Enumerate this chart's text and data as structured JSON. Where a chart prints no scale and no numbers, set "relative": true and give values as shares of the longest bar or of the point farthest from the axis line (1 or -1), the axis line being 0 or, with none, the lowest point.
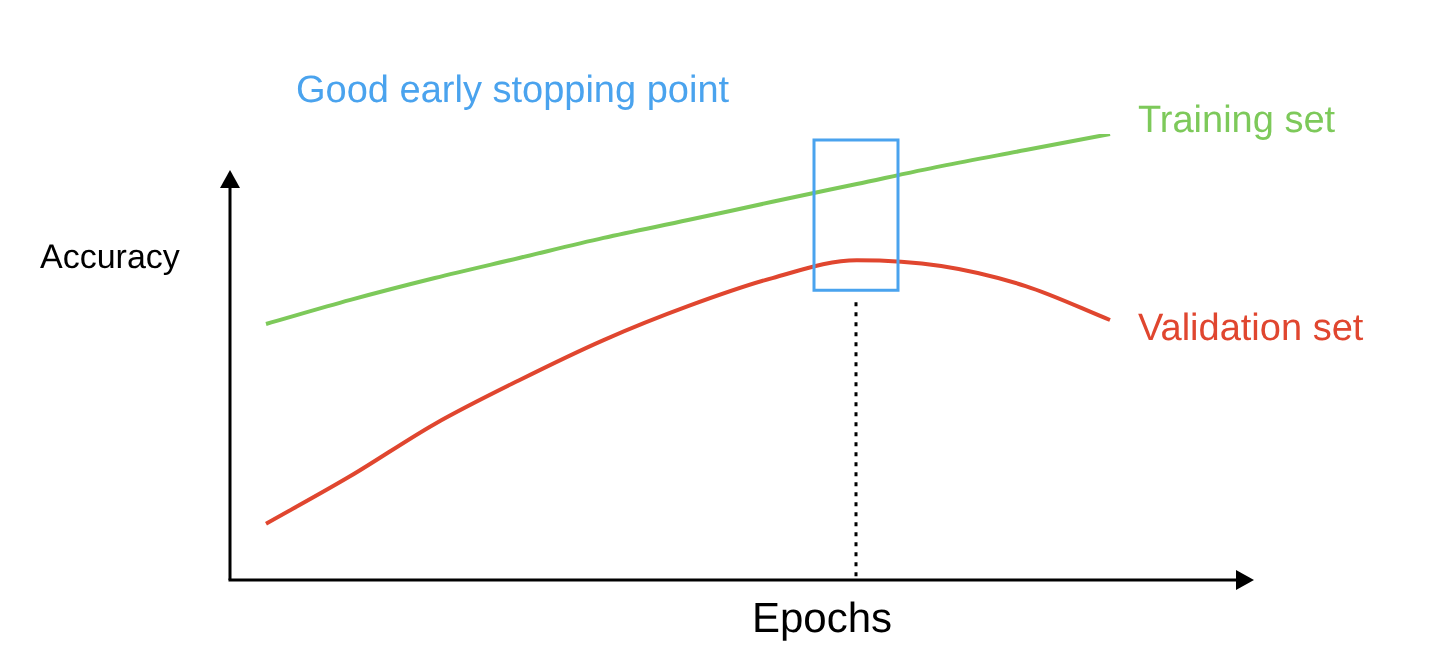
{
  "chart_data": {
    "type": "line",
    "relative": true,
    "xlabel": "Epochs",
    "ylabel": "Accuracy",
    "annotations": [
      "Good early stopping point"
    ],
    "categories": [
      null,
      null,
      null,
      null,
      null,
      null,
      null,
      null,
      null,
      null,
      null
    ],
    "marker": "none",
    "legend": false,
    "series": [
      {
        "name": "Training set",
        "color": "#7dc95a",
        "values": [
          0.574,
          0.628,
          0.677,
          0.722,
          0.767,
          0.807,
          0.848,
          0.888,
          0.928,
          0.964,
          1
        ]
      },
      {
        "name": "Validation set",
        "color": "#e0462f",
        "values": [
          0.126,
          0.233,
          0.35,
          0.448,
          0.538,
          0.614,
          0.677,
          0.717,
          0.704,
          0.659,
          0.583
        ]
      }
    ]
  }
}
